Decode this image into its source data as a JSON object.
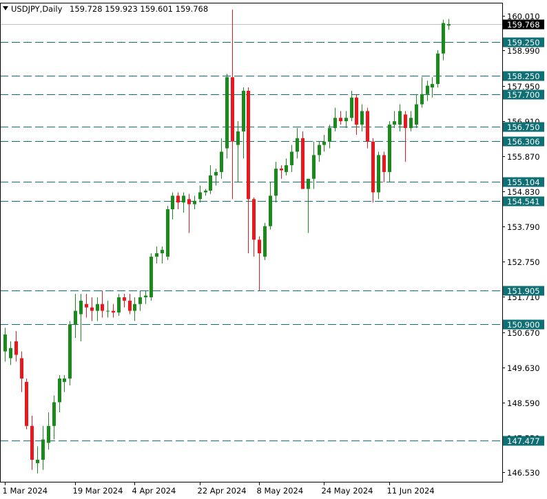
{
  "header": {
    "symbol": "USDJPY,Daily",
    "ohlc": "159.728 159.923 159.601 159.768"
  },
  "colors": {
    "bull": "#1a8a1a",
    "bear": "#e8191c",
    "level_line": "#0e6f74",
    "level_label_bg": "#0e6f74",
    "price_label_bg": "#000000",
    "frame": "#000000"
  },
  "chart_data": {
    "type": "candlestick",
    "symbol": "USDJPY",
    "timeframe": "Daily",
    "x_tick_labels": [
      "1 Mar 2024",
      "19 Mar 2024",
      "4 Apr 2024",
      "22 Apr 2024",
      "8 May 2024",
      "24 May 2024",
      "11 Jun 2024"
    ],
    "y_tick_values": [
      160.01,
      158.99,
      157.95,
      156.91,
      155.87,
      154.83,
      153.79,
      152.75,
      151.71,
      150.67,
      149.63,
      148.59,
      147.55,
      146.53
    ],
    "y_tick_labels": [
      "160.010",
      "158.990",
      "157.950",
      "156.910",
      "155.870",
      "154.830",
      "153.790",
      "152.750",
      "151.710",
      "150.670",
      "149.630",
      "148.590",
      "147.550",
      "146.530"
    ],
    "ylim": [
      146.25,
      160.4
    ],
    "current_price": 159.768,
    "current_price_label": "159.768",
    "levels": [
      {
        "value": 159.25,
        "label": "159.250"
      },
      {
        "value": 158.25,
        "label": "158.250"
      },
      {
        "value": 157.7,
        "label": "157.700"
      },
      {
        "value": 156.75,
        "label": "156.750"
      },
      {
        "value": 156.306,
        "label": "156.306"
      },
      {
        "value": 155.104,
        "label": "155.104"
      },
      {
        "value": 154.541,
        "label": "154.541"
      },
      {
        "value": 151.905,
        "label": "151.905"
      },
      {
        "value": 150.9,
        "label": "150.900"
      },
      {
        "value": 147.477,
        "label": "147.477"
      }
    ],
    "candles": [
      {
        "o": 150.1,
        "h": 150.8,
        "l": 149.8,
        "c": 150.6
      },
      {
        "o": 149.9,
        "h": 150.4,
        "l": 149.7,
        "c": 150.2
      },
      {
        "o": 150.4,
        "h": 150.7,
        "l": 149.8,
        "c": 150.0
      },
      {
        "o": 149.9,
        "h": 150.1,
        "l": 148.9,
        "c": 149.3
      },
      {
        "o": 149.2,
        "h": 149.3,
        "l": 147.8,
        "c": 147.9
      },
      {
        "o": 147.9,
        "h": 148.2,
        "l": 146.6,
        "c": 146.9
      },
      {
        "o": 146.8,
        "h": 147.3,
        "l": 146.5,
        "c": 146.9
      },
      {
        "o": 146.9,
        "h": 147.9,
        "l": 146.6,
        "c": 147.5
      },
      {
        "o": 147.4,
        "h": 148.3,
        "l": 147.2,
        "c": 147.9
      },
      {
        "o": 147.9,
        "h": 148.8,
        "l": 147.5,
        "c": 148.6
      },
      {
        "o": 148.6,
        "h": 149.4,
        "l": 148.3,
        "c": 149.3
      },
      {
        "o": 149.2,
        "h": 149.4,
        "l": 148.9,
        "c": 149.3
      },
      {
        "o": 149.3,
        "h": 151.0,
        "l": 149.1,
        "c": 150.9
      },
      {
        "o": 150.9,
        "h": 151.8,
        "l": 150.5,
        "c": 151.3
      },
      {
        "o": 151.2,
        "h": 151.8,
        "l": 150.4,
        "c": 151.6
      },
      {
        "o": 151.5,
        "h": 151.8,
        "l": 151.1,
        "c": 151.4
      },
      {
        "o": 151.4,
        "h": 151.7,
        "l": 151.0,
        "c": 151.3
      },
      {
        "o": 151.3,
        "h": 151.7,
        "l": 151.0,
        "c": 151.5
      },
      {
        "o": 151.5,
        "h": 151.9,
        "l": 151.1,
        "c": 151.3
      },
      {
        "o": 151.3,
        "h": 151.6,
        "l": 151.1,
        "c": 151.3
      },
      {
        "o": 151.3,
        "h": 151.5,
        "l": 151.1,
        "c": 151.25
      },
      {
        "o": 151.25,
        "h": 151.8,
        "l": 151.15,
        "c": 151.7
      },
      {
        "o": 151.7,
        "h": 151.8,
        "l": 151.4,
        "c": 151.6
      },
      {
        "o": 151.6,
        "h": 151.8,
        "l": 151.2,
        "c": 151.3
      },
      {
        "o": 151.3,
        "h": 151.7,
        "l": 151.0,
        "c": 151.5
      },
      {
        "o": 151.5,
        "h": 151.9,
        "l": 151.3,
        "c": 151.7
      },
      {
        "o": 151.7,
        "h": 151.9,
        "l": 151.5,
        "c": 151.75
      },
      {
        "o": 151.7,
        "h": 153.0,
        "l": 151.6,
        "c": 152.9
      },
      {
        "o": 152.9,
        "h": 153.2,
        "l": 152.7,
        "c": 153.0
      },
      {
        "o": 153.0,
        "h": 153.2,
        "l": 152.7,
        "c": 153.1
      },
      {
        "o": 152.9,
        "h": 154.4,
        "l": 152.8,
        "c": 154.3
      },
      {
        "o": 154.3,
        "h": 154.8,
        "l": 154.0,
        "c": 154.7
      },
      {
        "o": 154.7,
        "h": 154.8,
        "l": 154.3,
        "c": 154.5
      },
      {
        "o": 154.5,
        "h": 154.8,
        "l": 154.2,
        "c": 154.7
      },
      {
        "o": 154.6,
        "h": 154.75,
        "l": 153.6,
        "c": 154.45
      },
      {
        "o": 154.45,
        "h": 154.7,
        "l": 154.3,
        "c": 154.55
      },
      {
        "o": 154.6,
        "h": 155.0,
        "l": 154.5,
        "c": 154.8
      },
      {
        "o": 154.8,
        "h": 154.9,
        "l": 154.7,
        "c": 154.85
      },
      {
        "o": 154.85,
        "h": 155.6,
        "l": 154.75,
        "c": 155.3
      },
      {
        "o": 155.3,
        "h": 155.5,
        "l": 155.0,
        "c": 155.4
      },
      {
        "o": 155.4,
        "h": 156.4,
        "l": 155.2,
        "c": 156.0
      },
      {
        "o": 156.1,
        "h": 158.3,
        "l": 155.8,
        "c": 158.2
      },
      {
        "o": 158.2,
        "h": 160.2,
        "l": 154.6,
        "c": 156.3
      },
      {
        "o": 156.2,
        "h": 156.9,
        "l": 155.1,
        "c": 156.6
      },
      {
        "o": 156.6,
        "h": 157.9,
        "l": 155.8,
        "c": 157.8
      },
      {
        "o": 157.8,
        "h": 157.9,
        "l": 153.0,
        "c": 154.6
      },
      {
        "o": 154.6,
        "h": 154.65,
        "l": 152.9,
        "c": 153.4
      },
      {
        "o": 153.4,
        "h": 153.5,
        "l": 151.9,
        "c": 153.0
      },
      {
        "o": 152.9,
        "h": 153.9,
        "l": 152.8,
        "c": 153.8
      },
      {
        "o": 153.8,
        "h": 155.1,
        "l": 153.7,
        "c": 154.7
      },
      {
        "o": 154.7,
        "h": 155.7,
        "l": 154.5,
        "c": 155.5
      },
      {
        "o": 155.5,
        "h": 155.6,
        "l": 155.2,
        "c": 155.45
      },
      {
        "o": 155.4,
        "h": 155.8,
        "l": 155.3,
        "c": 155.6
      },
      {
        "o": 155.6,
        "h": 156.2,
        "l": 155.4,
        "c": 156.0
      },
      {
        "o": 156.0,
        "h": 156.7,
        "l": 155.8,
        "c": 156.4
      },
      {
        "o": 156.4,
        "h": 156.6,
        "l": 155.0,
        "c": 154.9
      },
      {
        "o": 154.9,
        "h": 155.2,
        "l": 153.6,
        "c": 155.2
      },
      {
        "o": 155.2,
        "h": 156.3,
        "l": 154.9,
        "c": 155.9
      },
      {
        "o": 155.9,
        "h": 156.3,
        "l": 155.7,
        "c": 156.2
      },
      {
        "o": 156.2,
        "h": 156.5,
        "l": 156.0,
        "c": 156.3
      },
      {
        "o": 156.3,
        "h": 156.8,
        "l": 156.1,
        "c": 156.7
      },
      {
        "o": 156.7,
        "h": 157.3,
        "l": 156.6,
        "c": 157.0
      },
      {
        "o": 157.0,
        "h": 157.2,
        "l": 156.8,
        "c": 156.9
      },
      {
        "o": 156.9,
        "h": 157.2,
        "l": 156.7,
        "c": 157.0
      },
      {
        "o": 157.0,
        "h": 157.8,
        "l": 156.9,
        "c": 157.6
      },
      {
        "o": 157.6,
        "h": 157.7,
        "l": 156.5,
        "c": 156.8
      },
      {
        "o": 156.8,
        "h": 157.4,
        "l": 156.6,
        "c": 157.2
      },
      {
        "o": 157.2,
        "h": 157.3,
        "l": 156.1,
        "c": 156.3
      },
      {
        "o": 156.3,
        "h": 156.4,
        "l": 154.5,
        "c": 154.8
      },
      {
        "o": 154.8,
        "h": 156.0,
        "l": 154.6,
        "c": 155.9
      },
      {
        "o": 155.9,
        "h": 156.0,
        "l": 155.1,
        "c": 155.4
      },
      {
        "o": 155.4,
        "h": 156.9,
        "l": 155.1,
        "c": 156.8
      },
      {
        "o": 156.8,
        "h": 157.2,
        "l": 156.7,
        "c": 156.9
      },
      {
        "o": 156.8,
        "h": 157.4,
        "l": 156.6,
        "c": 157.2
      },
      {
        "o": 157.1,
        "h": 157.2,
        "l": 155.7,
        "c": 156.7
      },
      {
        "o": 156.7,
        "h": 157.2,
        "l": 156.6,
        "c": 157.0
      },
      {
        "o": 156.8,
        "h": 157.7,
        "l": 156.7,
        "c": 157.4
      },
      {
        "o": 157.4,
        "h": 158.2,
        "l": 157.3,
        "c": 157.7
      },
      {
        "o": 157.7,
        "h": 158.1,
        "l": 157.5,
        "c": 157.95
      },
      {
        "o": 157.9,
        "h": 158.2,
        "l": 157.6,
        "c": 158.0
      },
      {
        "o": 158.0,
        "h": 159.0,
        "l": 157.9,
        "c": 158.9
      },
      {
        "o": 158.9,
        "h": 159.9,
        "l": 158.7,
        "c": 159.8
      },
      {
        "o": 159.728,
        "h": 159.923,
        "l": 159.601,
        "c": 159.768
      }
    ]
  }
}
